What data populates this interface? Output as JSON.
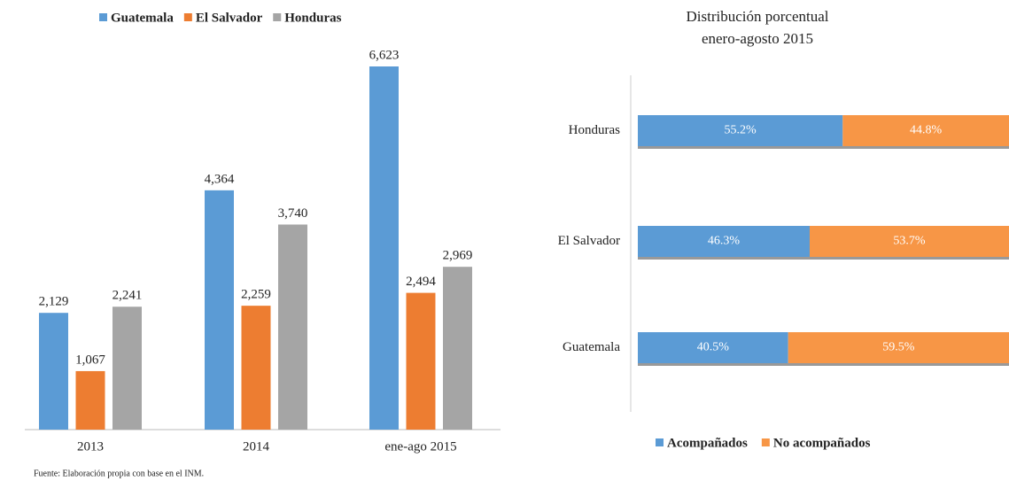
{
  "chart_data": [
    {
      "type": "bar",
      "categories": [
        "2013",
        "2014",
        "ene-ago 2015"
      ],
      "series": [
        {
          "name": "Guatemala",
          "color": "#5b9bd5",
          "values": [
            2129,
            4364,
            6623
          ],
          "value_labels": [
            "2,129",
            "4,364",
            "6,623"
          ]
        },
        {
          "name": "El Salvador",
          "color": "#ed7d31",
          "values": [
            1067,
            2259,
            2494
          ],
          "value_labels": [
            "1,067",
            "2,259",
            "2,494"
          ]
        },
        {
          "name": "Honduras",
          "color": "#a5a5a5",
          "values": [
            2241,
            3740,
            2969
          ],
          "value_labels": [
            "2,241",
            "3,740",
            "2,969"
          ]
        }
      ],
      "legend": "top",
      "note": "Fuente: Elaboración propia con base en el INM."
    },
    {
      "type": "bar",
      "orientation": "horizontal",
      "stacked": true,
      "title": [
        "Distribución porcentual",
        "enero-agosto 2015"
      ],
      "categories": [
        "Honduras",
        "El Salvador",
        "Guatemala"
      ],
      "series": [
        {
          "name": "Acompañados",
          "color": "#5b9bd5",
          "values": [
            55.2,
            46.3,
            40.5
          ],
          "value_labels": [
            "55.2%",
            "46.3%",
            "40.5%"
          ]
        },
        {
          "name": "No acompañados",
          "color": "#f79646",
          "values": [
            44.8,
            53.7,
            59.5
          ],
          "value_labels": [
            "44.8%",
            "53.7%",
            "59.5%"
          ]
        }
      ],
      "legend": "bottom"
    }
  ]
}
